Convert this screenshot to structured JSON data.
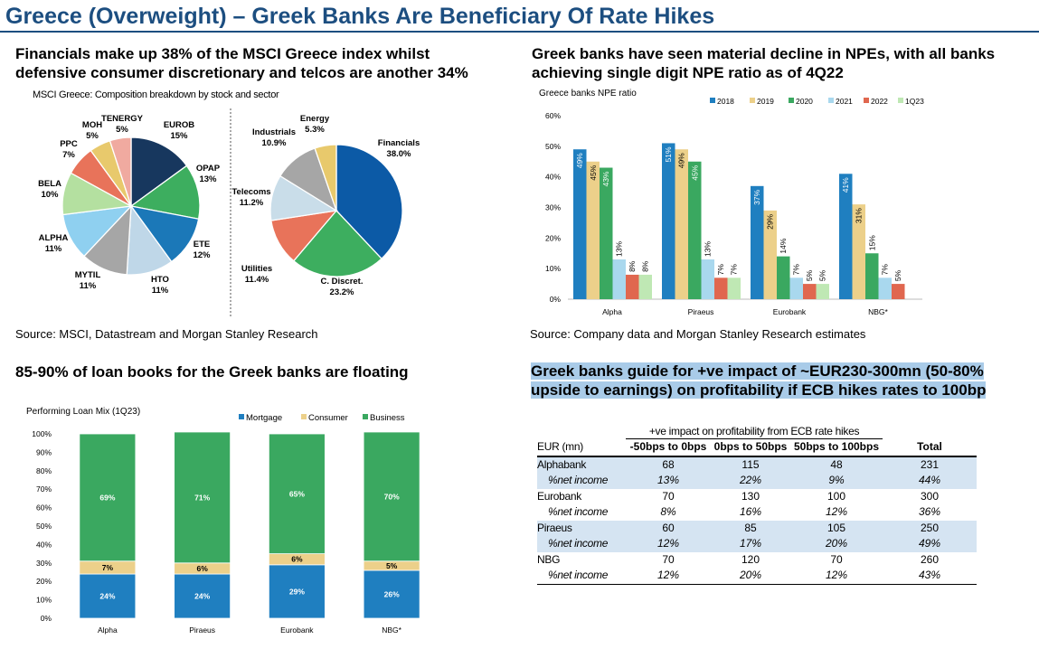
{
  "title": "Greece (Overweight) – Greek Banks Are Beneficiary Of Rate Hikes",
  "panels": {
    "msci": {
      "heading_l1": "Financials make up 38% of the MSCI Greece index whilst",
      "heading_l2": "defensive consumer discretionary and telcos are another 34%",
      "subtitle": "MSCI Greece: Composition breakdown by stock and sector",
      "source": "Source: MSCI, Datastream and Morgan Stanley Research"
    },
    "npe": {
      "heading_l1": "Greek banks have seen material decline in NPEs, with all banks",
      "heading_l2": "achieving single digit NPE ratio as of 4Q22",
      "source": "Source: Company data and Morgan Stanley Research estimates"
    },
    "loan": {
      "heading": "85-90% of loan books for the Greek banks are floating"
    },
    "impact": {
      "heading_l1": "Greek banks guide for +ve impact of ~EUR230-300mn (50-80%",
      "heading_l2": "upside to earnings) on profitability if ECB hikes rates to 100bp"
    }
  },
  "chart_data": [
    {
      "type": "pie",
      "id": "stock_pie",
      "title": "MSCI Greece: Composition breakdown by stock and sector",
      "slices": [
        {
          "label": "EUROB",
          "value_label": "15%",
          "value": 15,
          "color": "#17375e"
        },
        {
          "label": "OPAP",
          "value_label": "13%",
          "value": 13,
          "color": "#3dae5f"
        },
        {
          "label": "ETE",
          "value_label": "12%",
          "value": 12,
          "color": "#1b78b8"
        },
        {
          "label": "HTO",
          "value_label": "11%",
          "value": 11,
          "color": "#bfd7e8"
        },
        {
          "label": "MYTIL",
          "value_label": "11%",
          "value": 11,
          "color": "#a6a6a6"
        },
        {
          "label": "ALPHA",
          "value_label": "11%",
          "value": 11,
          "color": "#8fd0f0"
        },
        {
          "label": "BELA",
          "value_label": "10%",
          "value": 10,
          "color": "#b4e0a0"
        },
        {
          "label": "PPC",
          "value_label": "7%",
          "value": 7,
          "color": "#e8735a"
        },
        {
          "label": "MOH",
          "value_label": "5%",
          "value": 5,
          "color": "#e8c96c"
        },
        {
          "label": "TENERGY",
          "value_label": "5%",
          "value": 5,
          "color": "#f0aaa0"
        }
      ]
    },
    {
      "type": "pie",
      "id": "sector_pie",
      "slices": [
        {
          "label": "Financials",
          "value_label": "38.0%",
          "value": 38.0,
          "color": "#0c5aa6"
        },
        {
          "label": "C. Discret.",
          "value_label": "23.2%",
          "value": 23.2,
          "color": "#3dae5f"
        },
        {
          "label": "Utilities",
          "value_label": "11.4%",
          "value": 11.4,
          "color": "#e8735a"
        },
        {
          "label": "Telecoms",
          "value_label": "11.2%",
          "value": 11.2,
          "color": "#c9dde9"
        },
        {
          "label": "Industrials",
          "value_label": "10.9%",
          "value": 10.9,
          "color": "#a6a6a6"
        },
        {
          "label": "Energy",
          "value_label": "5.3%",
          "value": 5.3,
          "color": "#e8c96c"
        }
      ]
    },
    {
      "type": "bar",
      "id": "npe_bar",
      "title": "Greece banks NPE ratio",
      "categories": [
        "Alpha",
        "Piraeus",
        "Eurobank",
        "NBG*"
      ],
      "ylim": [
        0,
        60
      ],
      "yticks": [
        "0%",
        "10%",
        "20%",
        "30%",
        "40%",
        "50%",
        "60%"
      ],
      "series": [
        {
          "name": "2018",
          "color": "#1f7fc0",
          "values": [
            49,
            51,
            37,
            41
          ],
          "labels": [
            "49%",
            "51%",
            "37%",
            "41%"
          ]
        },
        {
          "name": "2019",
          "color": "#ecd08a",
          "values": [
            45,
            49,
            29,
            31
          ],
          "labels": [
            "45%",
            "49%",
            "29%",
            "31%"
          ]
        },
        {
          "name": "2020",
          "color": "#3aa860",
          "values": [
            43,
            45,
            14,
            15
          ],
          "labels": [
            "43%",
            "45%",
            "14%",
            "15%"
          ]
        },
        {
          "name": "2021",
          "color": "#a9d8ee",
          "values": [
            13,
            13,
            7,
            7
          ],
          "labels": [
            "13%",
            "13%",
            "7%",
            "7%"
          ]
        },
        {
          "name": "2022",
          "color": "#e0674f",
          "values": [
            8,
            7,
            5,
            5
          ],
          "labels": [
            "8%",
            "7%",
            "5%",
            "5%"
          ]
        },
        {
          "name": "1Q23",
          "color": "#bfe8b4",
          "values": [
            8,
            7,
            5,
            null
          ],
          "labels": [
            "8%",
            "7%",
            "5%",
            ""
          ]
        }
      ]
    },
    {
      "type": "bar",
      "stacked": true,
      "id": "loan_mix",
      "title": "Performing Loan Mix (1Q23)",
      "categories": [
        "Alpha",
        "Piraeus",
        "Eurobank",
        "NBG*"
      ],
      "ylim": [
        0,
        100
      ],
      "yticks": [
        "0%",
        "10%",
        "20%",
        "30%",
        "40%",
        "50%",
        "60%",
        "70%",
        "80%",
        "90%",
        "100%"
      ],
      "series": [
        {
          "name": "Mortgage",
          "color": "#1f7fc0",
          "values": [
            24,
            24,
            29,
            26
          ],
          "labels": [
            "24%",
            "24%",
            "29%",
            "26%"
          ]
        },
        {
          "name": "Consumer",
          "color": "#ecd08a",
          "values": [
            7,
            6,
            6,
            5
          ],
          "labels": [
            "7%",
            "6%",
            "6%",
            "5%"
          ]
        },
        {
          "name": "Business",
          "color": "#3aa860",
          "values": [
            69,
            71,
            65,
            70
          ],
          "labels": [
            "69%",
            "71%",
            "65%",
            "70%"
          ]
        }
      ]
    },
    {
      "type": "table",
      "id": "rate_impact",
      "group_header": "+ve impact on profitability from ECB rate hikes",
      "columns": [
        "EUR (mn)",
        "-50bps to 0bps",
        "0bps to 50bps",
        "50bps to 100bps",
        "Total"
      ],
      "rows": [
        [
          "Alphabank",
          "68",
          "115",
          "48",
          "231"
        ],
        [
          "%net income",
          "13%",
          "22%",
          "9%",
          "44%"
        ],
        [
          "Eurobank",
          "70",
          "130",
          "100",
          "300"
        ],
        [
          "%net income",
          "8%",
          "16%",
          "12%",
          "36%"
        ],
        [
          "Piraeus",
          "60",
          "85",
          "105",
          "250"
        ],
        [
          "%net income",
          "12%",
          "17%",
          "20%",
          "49%"
        ],
        [
          "NBG",
          "70",
          "120",
          "70",
          "260"
        ],
        [
          "%net income",
          "12%",
          "20%",
          "12%",
          "43%"
        ]
      ]
    }
  ]
}
